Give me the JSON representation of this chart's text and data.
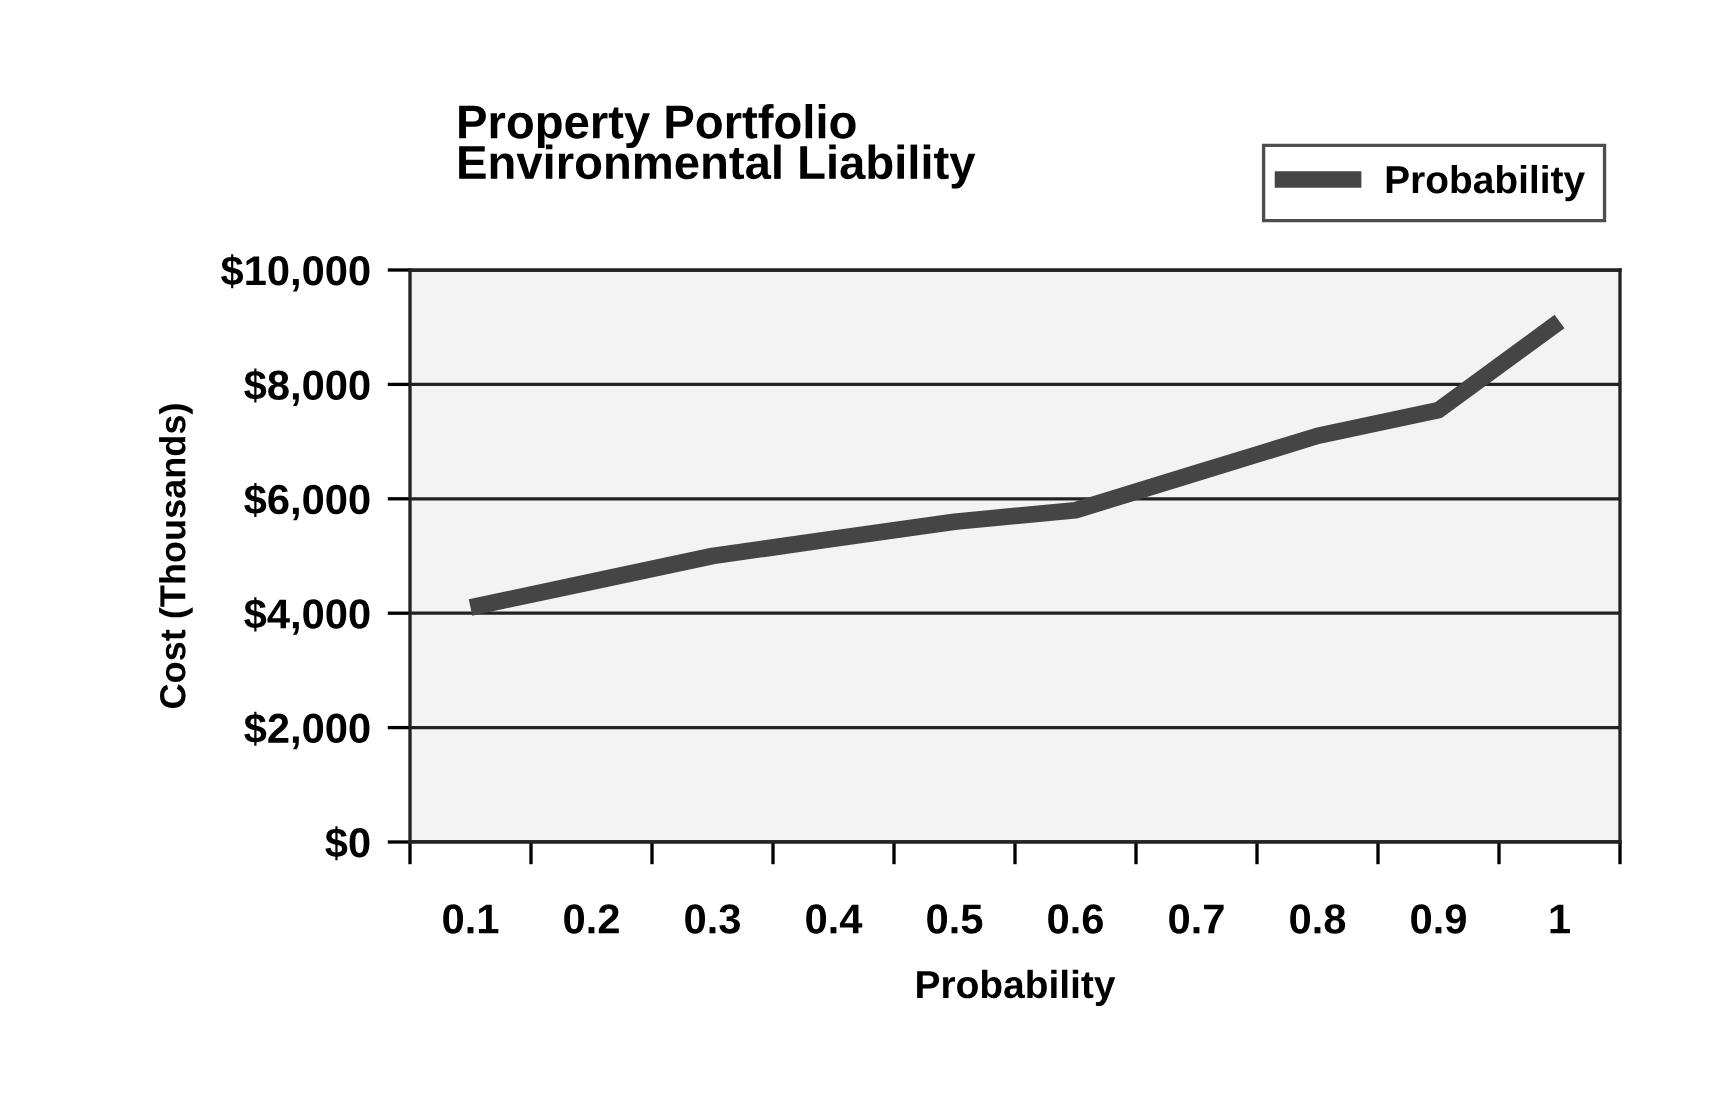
{
  "chart_data": {
    "type": "line",
    "title": "Property Portfolio\nEnvironmental Liability",
    "xlabel": "Probability",
    "ylabel": "Cost (Thousands)",
    "categories": [
      "0.1",
      "0.2",
      "0.3",
      "0.4",
      "0.5",
      "0.6",
      "0.7",
      "0.8",
      "0.9",
      "1"
    ],
    "series": [
      {
        "name": "Probability",
        "color": "#454545",
        "values": [
          4100,
          4550,
          5000,
          5300,
          5600,
          5800,
          6450,
          7100,
          7550,
          9100
        ]
      }
    ],
    "ylim": [
      0,
      10000
    ],
    "yticks": [
      {
        "value": 0,
        "label": "$0"
      },
      {
        "value": 2000,
        "label": "$2,000"
      },
      {
        "value": 4000,
        "label": "$4,000"
      },
      {
        "value": 6000,
        "label": "$6,000"
      },
      {
        "value": 8000,
        "label": "$8,000"
      },
      {
        "value": 10000,
        "label": "$10,000"
      }
    ],
    "grid": "y",
    "legend": "top right",
    "marker": "none",
    "line_style": "solid"
  }
}
